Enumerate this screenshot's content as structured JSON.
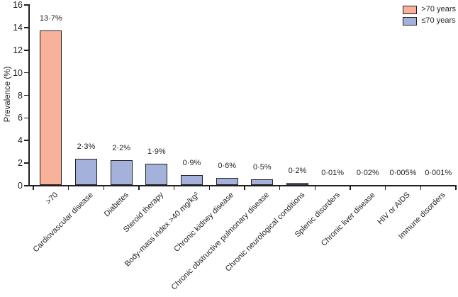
{
  "chart_data": {
    "type": "bar",
    "title": "",
    "xlabel": "",
    "ylabel": "Prevalence (%)",
    "ylim": [
      0,
      16
    ],
    "yticks": [
      0,
      2,
      4,
      6,
      8,
      10,
      12,
      14,
      16
    ],
    "grid": false,
    "legend_position": "top-right",
    "axis_color": "#231f20",
    "background_color": "#ffffff",
    "legend": [
      {
        "name": ">70 years",
        "color": "#f8b29a"
      },
      {
        "name": "≤70 years",
        "color": "#a4b2db"
      }
    ],
    "bars": [
      {
        "category": ">70",
        "value": 13.7,
        "label": "13·7%",
        "group": ">70 years"
      },
      {
        "category": "Cardiovascular disease",
        "value": 2.3,
        "label": "2·3%",
        "group": "≤70 years"
      },
      {
        "category": "Diabetes",
        "value": 2.2,
        "label": "2·2%",
        "group": "≤70 years"
      },
      {
        "category": "Steroid therapy",
        "value": 1.9,
        "label": "1·9%",
        "group": "≤70 years"
      },
      {
        "category": "Body-mass index >40 mg/kg²",
        "value": 0.9,
        "label": "0·9%",
        "group": "≤70 years"
      },
      {
        "category": "Chronic kidney disease",
        "value": 0.6,
        "label": "0·6%",
        "group": "≤70 years"
      },
      {
        "category": "Chronic obstructive pulmonary disease",
        "value": 0.5,
        "label": "0·5%",
        "group": "≤70 years"
      },
      {
        "category": "Chronic neurological conditions",
        "value": 0.2,
        "label": "0·2%",
        "group": "≤70 years"
      },
      {
        "category": "Splenic disorders",
        "value": 0.01,
        "label": "0·01%",
        "group": "≤70 years"
      },
      {
        "category": "Chronic liver disease",
        "value": 0.02,
        "label": "0·02%",
        "group": "≤70 years"
      },
      {
        "category": "HIV or AIDS",
        "value": 0.005,
        "label": "0·005%",
        "group": "≤70 years"
      },
      {
        "category": "Immune disorders",
        "value": 0.001,
        "label": "0·001%",
        "group": "≤70 years"
      }
    ]
  }
}
